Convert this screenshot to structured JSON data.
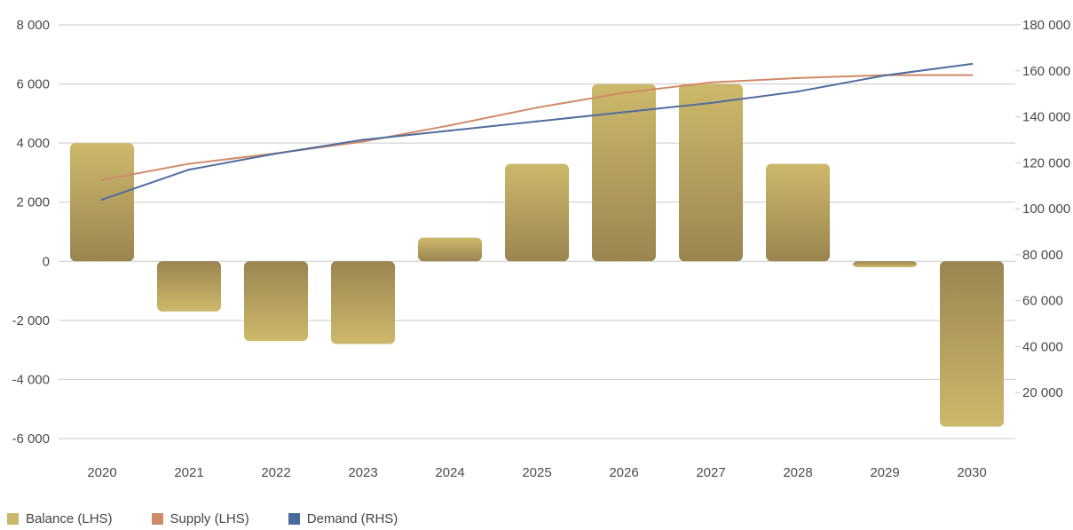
{
  "chart_data": {
    "type": "bar",
    "categories": [
      "2020",
      "2021",
      "2022",
      "2023",
      "2024",
      "2025",
      "2026",
      "2027",
      "2028",
      "2029",
      "2030"
    ],
    "series": [
      {
        "name": "Balance (LHS)",
        "type": "bar",
        "axis": "left",
        "values": [
          4000,
          -1700,
          -2700,
          -2800,
          800,
          3300,
          6000,
          6000,
          3300,
          -200,
          -5600
        ]
      },
      {
        "name": "Supply (LHS)",
        "type": "line",
        "axis": "left",
        "values": [
          2750,
          3300,
          3650,
          4050,
          4600,
          5200,
          5700,
          6050,
          6200,
          6300,
          6300
        ]
      },
      {
        "name": "Demand (RHS)",
        "type": "line",
        "axis": "right",
        "values": [
          104000,
          117000,
          124000,
          130000,
          134000,
          138000,
          142000,
          146000,
          151000,
          158000,
          163000
        ]
      }
    ],
    "left_axis": {
      "ylim": [
        -6000,
        8000
      ],
      "ticks": [
        -6000,
        -4000,
        -2000,
        0,
        2000,
        4000,
        6000,
        8000
      ],
      "tick_labels": [
        "-6 000",
        "-4 000",
        "-2 000",
        "0",
        "2 000",
        "4 000",
        "6 000",
        "8 000"
      ]
    },
    "right_axis": {
      "ylim": [
        0,
        180000
      ],
      "ticks": [
        20000,
        40000,
        60000,
        80000,
        100000,
        120000,
        140000,
        160000,
        180000
      ],
      "tick_labels": [
        "20 000",
        "40 000",
        "60 000",
        "80 000",
        "100 000",
        "120 000",
        "140 000",
        "160 000",
        "180 000"
      ]
    },
    "grid": true,
    "legend_position": "bottom-left",
    "colors": {
      "balance_top": "#cdb96a",
      "balance_bottom": "#9a8551",
      "supply": "#d08a66",
      "demand": "#4f6d9e",
      "grid": "#c9c9c9"
    }
  },
  "legend": [
    {
      "label": "Balance (LHS)",
      "color": "#c9b76a"
    },
    {
      "label": "Supply (LHS)",
      "color": "#cf8a68"
    },
    {
      "label": "Demand (RHS)",
      "color": "#4a6a9e"
    }
  ]
}
